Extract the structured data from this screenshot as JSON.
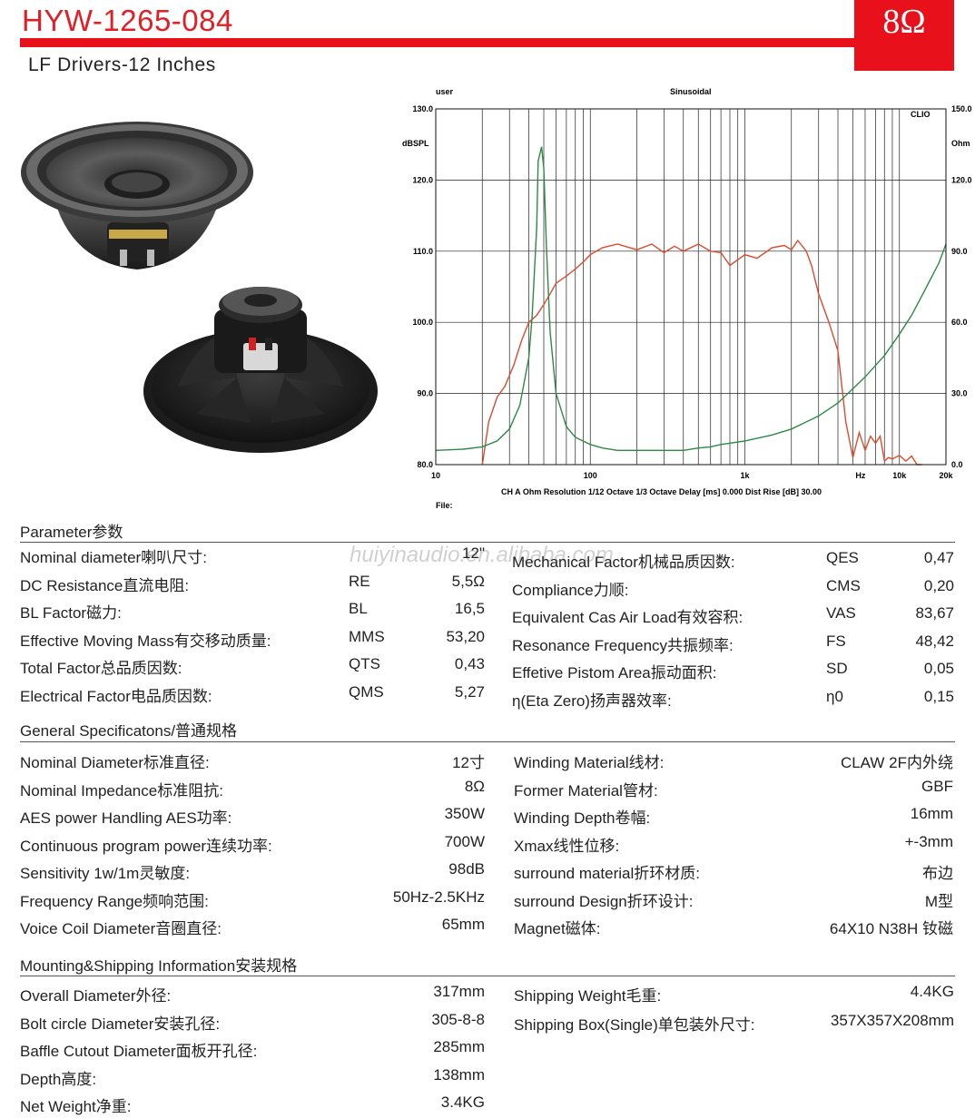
{
  "header": {
    "model": "HYW-1265-084",
    "impedance_badge": "8Ω",
    "subtitle": "LF Drivers-12 Inches",
    "brand_color": "#e8101a"
  },
  "watermark": "huiyinaudio.en.alibaba.com",
  "chart_data": {
    "type": "line",
    "title": "Sinusoidal",
    "top_left_label": "user",
    "brand": "CLIO",
    "file_label": "File:",
    "xlabel": "Hz",
    "footer": "CH A   Ohm   Resolution 1/12 Octave   1/3 Octave   Delay [ms] 0.000   Dist Rise [dB] 30.00",
    "x_scale": "log",
    "xlim": [
      10,
      20000
    ],
    "x_tick_labels": [
      "10",
      "100",
      "1k",
      "10k",
      "20k"
    ],
    "y_left": {
      "label": "dBSPL",
      "ylim": [
        80,
        130
      ],
      "ticks": [
        "130.0",
        "120.0",
        "110.0",
        "100.0",
        "90.0",
        "80.0"
      ]
    },
    "y_right": {
      "label": "Ohm",
      "ylim": [
        0,
        150
      ],
      "ticks": [
        "150.0",
        "120.0",
        "90.0",
        "60.0",
        "30.0",
        "0.0"
      ]
    },
    "grid": true,
    "series": [
      {
        "axis": "left",
        "color": "#e04a2a",
        "x": [
          20,
          22,
          25,
          28,
          32,
          36,
          40,
          45,
          50,
          55,
          60,
          70,
          80,
          90,
          100,
          120,
          150,
          180,
          200,
          250,
          300,
          350,
          400,
          500,
          600,
          700,
          800,
          1000,
          1200,
          1500,
          1800,
          2000,
          2200,
          2500,
          2700,
          3000,
          3500,
          4000,
          4500,
          5000,
          5200,
          5500,
          6000,
          6500,
          7000,
          7500,
          8000,
          8500,
          9000,
          10000,
          11000,
          12000,
          13000,
          14000
        ],
        "y": [
          80,
          86,
          89.5,
          91,
          94,
          97.5,
          100,
          101,
          102.5,
          104,
          105.5,
          106.5,
          107.5,
          108.5,
          109.5,
          110.5,
          111,
          110.5,
          110.2,
          111,
          109.8,
          110.7,
          110,
          111,
          110,
          109.8,
          108,
          109.5,
          109,
          110.5,
          110.8,
          110.2,
          111.5,
          110,
          108,
          104,
          100,
          96,
          86,
          81,
          82.5,
          84.5,
          82,
          84,
          83,
          84,
          80.5,
          81,
          80.8,
          81.3,
          80.5,
          81.2,
          80,
          80
        ]
      },
      {
        "axis": "right",
        "color": "#2c8a46",
        "x": [
          10,
          15,
          20,
          25,
          30,
          35,
          40,
          42,
          45,
          46,
          48.42,
          50,
          52,
          55,
          60,
          70,
          80,
          100,
          120,
          150,
          200,
          300,
          400,
          500,
          600,
          700,
          1000,
          1500,
          2000,
          3000,
          4000,
          5000,
          6000,
          8000,
          10000,
          12000,
          15000,
          18000,
          20000
        ],
        "y": [
          6,
          6.5,
          7.5,
          10,
          15,
          25,
          45,
          62,
          100,
          128,
          134,
          125,
          92,
          56,
          30,
          16,
          11.5,
          8.5,
          7,
          6,
          6,
          6,
          6,
          7,
          7.5,
          8.5,
          10,
          12.5,
          15,
          20.5,
          26,
          32,
          37,
          46,
          55,
          63,
          75,
          85,
          93
        ]
      }
    ]
  },
  "parameters": {
    "title": "Parameter参数",
    "left": [
      {
        "label": "Nominal diameter喇叭尺寸:",
        "symbol": "",
        "value": "12\""
      },
      {
        "label": "DC Resistance直流电阻:",
        "symbol": "RE",
        "value": "5,5Ω"
      },
      {
        "label": "BL Factor磁力:",
        "symbol": "BL",
        "value": "16,5"
      },
      {
        "label": "Effective Moving Mass有交移动质量:",
        "symbol": "MMS",
        "value": "53,20"
      },
      {
        "label": "Total Factor总品质因数:",
        "symbol": "QTS",
        "value": "0,43"
      },
      {
        "label": "Electrical  Factor电品质因数:",
        "symbol": "QMS",
        "value": "5,27"
      }
    ],
    "right": [
      {
        "label": "Mechanical Factor机械品质因数:",
        "symbol": "QES",
        "value": "0,47"
      },
      {
        "label": "Compliance力顺:",
        "symbol": "CMS",
        "value": "0,20"
      },
      {
        "label": "Equivalent Cas Air  Load有效容积:",
        "symbol": "VAS",
        "value": "83,67"
      },
      {
        "label": "Resonance Frequency共振频率:",
        "symbol": "FS",
        "value": "48,42"
      },
      {
        "label": "Effetive Pistom Area振动面积:",
        "symbol": "SD",
        "value": "0,05"
      },
      {
        "label": "η(Eta  Zero)扬声器效率:",
        "symbol": "η0",
        "value": "0,15"
      }
    ]
  },
  "general": {
    "title": "General Specificatons/普通规格",
    "left": [
      {
        "label": "Nominal Diameter标准直径:",
        "value": "12寸"
      },
      {
        "label": "Nominal Impedance标准阻抗:",
        "value": "8Ω"
      },
      {
        "label": "AES power Handling AES功率:",
        "value": "350W"
      },
      {
        "label": "Continuous program power连续功率:",
        "value": "700W"
      },
      {
        "label": "Sensitivity 1w/1m灵敏度:",
        "value": "98dB"
      },
      {
        "label": "Frequency Range频响范围:",
        "value": "50Hz-2.5KHz"
      },
      {
        "label": "Voice Coil Diameter音圈直径:",
        "value": "65mm"
      }
    ],
    "right": [
      {
        "label": "Winding Material线材:",
        "value": "CLAW 2F内外绕"
      },
      {
        "label": "Former Material管材:",
        "value": "GBF"
      },
      {
        "label": "Winding Depth卷幅:",
        "value": "16mm"
      },
      {
        "label": "Xmax线性位移:",
        "value": "+-3mm"
      },
      {
        "label": "surround material折环材质:",
        "value": "布边"
      },
      {
        "label": "surround Design折环设计:",
        "value": "M型"
      },
      {
        "label": "Magnet磁体:",
        "value": "64X10  N38H      钕磁"
      }
    ]
  },
  "mounting": {
    "title": "Mounting&Shipping Information安装规格",
    "left": [
      {
        "label": "Overall Diameter外径:",
        "value": "317mm"
      },
      {
        "label": "Bolt circle Diameter安装孔径:",
        "value": "305-8-8"
      },
      {
        "label": "Baffle Cutout Diameter面板开孔径:",
        "value": "285mm"
      },
      {
        "label": "Depth高度:",
        "value": "138mm"
      },
      {
        "label": "Net Weight净重:",
        "value": "3.4KG"
      }
    ],
    "right": [
      {
        "label": "Shipping Weight毛重:",
        "value": "4.4KG"
      },
      {
        "label": "Shipping Box(Single)单包装外尺寸:",
        "value": "357X357X208mm"
      }
    ]
  }
}
